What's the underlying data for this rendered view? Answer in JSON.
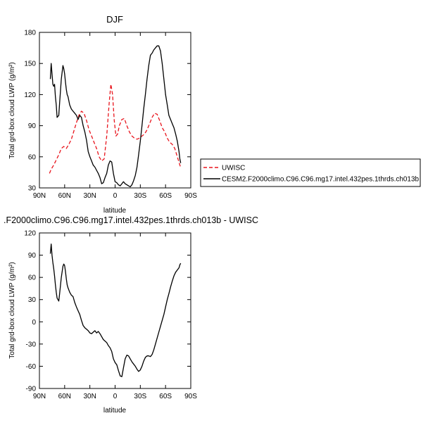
{
  "chart_data": [
    {
      "type": "line",
      "title": "DJF",
      "xlabel": "latitude",
      "ylabel": "Total grd-box cloud LWP (g/m²)",
      "xlim": [
        90,
        -90
      ],
      "ylim": [
        30,
        180
      ],
      "x_ticks": [
        {
          "value": 90,
          "label": "90N"
        },
        {
          "value": 60,
          "label": "60N"
        },
        {
          "value": 30,
          "label": "30N"
        },
        {
          "value": 0,
          "label": "0"
        },
        {
          "value": -30,
          "label": "30S"
        },
        {
          "value": -60,
          "label": "60S"
        },
        {
          "value": -90,
          "label": "90S"
        }
      ],
      "y_ticks": [
        {
          "value": 30,
          "label": "30"
        },
        {
          "value": 60,
          "label": "60"
        },
        {
          "value": 90,
          "label": "90"
        },
        {
          "value": 120,
          "label": "120"
        },
        {
          "value": 150,
          "label": "150"
        },
        {
          "value": 180,
          "label": "180"
        }
      ],
      "legend_position": "right",
      "series": [
        {
          "name": "UWISC",
          "color": "#e8141c",
          "dash": "dashed",
          "x": [
            78,
            76,
            73,
            70,
            67,
            64,
            61,
            58,
            55,
            52,
            49,
            46,
            43,
            40,
            37,
            34,
            31,
            28,
            25,
            22,
            19,
            16,
            13,
            10,
            7,
            5,
            3,
            1,
            -1,
            -3,
            -5,
            -8,
            -11,
            -14,
            -17,
            -20,
            -23,
            -26,
            -29,
            -32,
            -35,
            -38,
            -41,
            -44,
            -47,
            -50,
            -53,
            -56,
            -59,
            -62,
            -65,
            -68,
            -71,
            -74,
            -77,
            -78
          ],
          "y": [
            44,
            48,
            52,
            57,
            62,
            68,
            70,
            68,
            72,
            77,
            85,
            93,
            100,
            104,
            102,
            95,
            86,
            80,
            74,
            68,
            60,
            56,
            58,
            80,
            112,
            130,
            120,
            95,
            80,
            82,
            90,
            96,
            97,
            90,
            84,
            80,
            78,
            77,
            78,
            80,
            82,
            86,
            92,
            98,
            102,
            101,
            95,
            88,
            84,
            78,
            74,
            72,
            68,
            60,
            52,
            50
          ]
        },
        {
          "name": "CESM2.F2000climo.C96.C96.mg17.intel.432pes.1thrds.ch013b",
          "color": "#000000",
          "dash": "solid",
          "x": [
            77,
            76,
            75,
            74,
            73,
            72,
            71,
            70,
            69,
            67,
            66,
            64,
            62,
            61,
            60,
            59,
            58,
            57,
            56,
            54,
            52,
            50,
            48,
            46,
            44,
            42,
            40,
            38,
            36,
            34,
            32,
            30,
            28,
            26,
            24,
            22,
            20,
            18,
            16,
            14,
            12,
            10,
            8,
            6,
            4,
            2,
            0,
            -2,
            -4,
            -6,
            -8,
            -10,
            -12,
            -14,
            -16,
            -18,
            -20,
            -22,
            -24,
            -26,
            -28,
            -30,
            -32,
            -34,
            -36,
            -38,
            -40,
            -42,
            -44,
            -46,
            -48,
            -50,
            -52,
            -54,
            -56,
            -58,
            -60,
            -62,
            -64,
            -66,
            -68,
            -70,
            -72,
            -74,
            -76,
            -77,
            -78
          ],
          "y": [
            135,
            150,
            140,
            130,
            128,
            130,
            118,
            110,
            98,
            100,
            112,
            135,
            148,
            145,
            140,
            132,
            125,
            120,
            118,
            110,
            106,
            104,
            102,
            100,
            96,
            100,
            98,
            90,
            84,
            76,
            65,
            60,
            56,
            52,
            50,
            47,
            44,
            40,
            34,
            35,
            40,
            44,
            52,
            56,
            55,
            44,
            36,
            35,
            33,
            32,
            34,
            36,
            34,
            33,
            32,
            31,
            33,
            37,
            42,
            50,
            62,
            75,
            90,
            106,
            120,
            135,
            148,
            158,
            160,
            163,
            165,
            167,
            167,
            162,
            150,
            135,
            120,
            110,
            100,
            96,
            92,
            88,
            82,
            75,
            65,
            58,
            54
          ]
        }
      ]
    },
    {
      "type": "line",
      "title": ".F2000climo.C96.C96.mg17.intel.432pes.1thrds.ch013b - UWISC",
      "xlabel": "latitude",
      "ylabel": "Total grd-box cloud LWP (g/m²)",
      "xlim": [
        90,
        -90
      ],
      "ylim": [
        -90,
        120
      ],
      "x_ticks": [
        {
          "value": 90,
          "label": "90N"
        },
        {
          "value": 60,
          "label": "60N"
        },
        {
          "value": 30,
          "label": "30N"
        },
        {
          "value": 0,
          "label": "0"
        },
        {
          "value": -30,
          "label": "30S"
        },
        {
          "value": -60,
          "label": "60S"
        },
        {
          "value": -90,
          "label": "90S"
        }
      ],
      "y_ticks": [
        {
          "value": -90,
          "label": "-90"
        },
        {
          "value": -60,
          "label": "-60"
        },
        {
          "value": -30,
          "label": "-30"
        },
        {
          "value": 0,
          "label": "0"
        },
        {
          "value": 30,
          "label": "30"
        },
        {
          "value": 60,
          "label": "60"
        },
        {
          "value": 90,
          "label": "90"
        },
        {
          "value": 120,
          "label": "120"
        }
      ],
      "series": [
        {
          "color": "#000000",
          "dash": "solid",
          "x": [
            77,
            76,
            75,
            74,
            73,
            72,
            71,
            70,
            69,
            67,
            66,
            64,
            62,
            61,
            60,
            59,
            58,
            57,
            56,
            54,
            52,
            50,
            48,
            46,
            44,
            42,
            40,
            38,
            36,
            34,
            32,
            30,
            28,
            26,
            24,
            22,
            20,
            18,
            16,
            14,
            12,
            10,
            8,
            6,
            4,
            2,
            0,
            -2,
            -4,
            -6,
            -8,
            -10,
            -12,
            -14,
            -16,
            -18,
            -20,
            -22,
            -24,
            -26,
            -28,
            -30,
            -32,
            -34,
            -36,
            -38,
            -40,
            -42,
            -44,
            -46,
            -48,
            -50,
            -52,
            -54,
            -56,
            -58,
            -60,
            -62,
            -64,
            -66,
            -68,
            -70,
            -72,
            -74,
            -76,
            -77,
            -78
          ],
          "y": [
            92,
            105,
            90,
            80,
            72,
            62,
            50,
            40,
            32,
            28,
            38,
            60,
            75,
            78,
            76,
            68,
            58,
            50,
            46,
            40,
            36,
            34,
            26,
            20,
            15,
            10,
            2,
            -5,
            -8,
            -10,
            -12,
            -15,
            -16,
            -14,
            -12,
            -15,
            -13,
            -16,
            -20,
            -24,
            -26,
            -28,
            -32,
            -35,
            -40,
            -50,
            -55,
            -58,
            -66,
            -73,
            -74,
            -62,
            -50,
            -45,
            -46,
            -50,
            -54,
            -57,
            -60,
            -64,
            -67,
            -65,
            -60,
            -53,
            -48,
            -46,
            -46,
            -47,
            -44,
            -38,
            -30,
            -22,
            -14,
            -6,
            2,
            10,
            20,
            30,
            38,
            47,
            55,
            62,
            67,
            70,
            73,
            77,
            79
          ]
        }
      ]
    }
  ]
}
